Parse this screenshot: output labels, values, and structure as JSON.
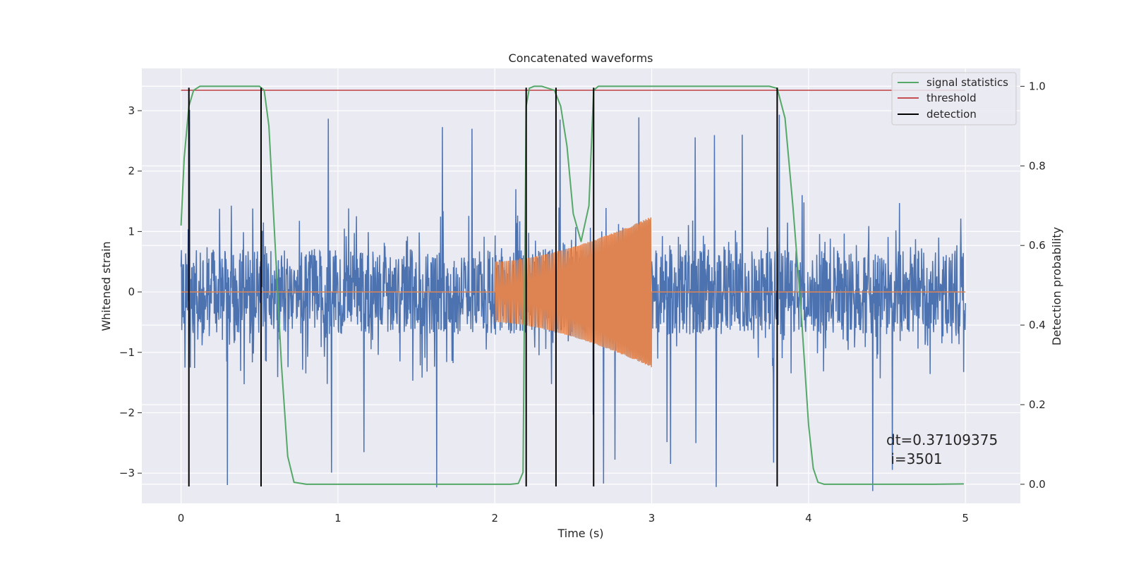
{
  "chart_data": {
    "type": "line",
    "title": "Concatenated waveforms",
    "xlabel": "Time (s)",
    "ylabel": "Whitened strain",
    "y2label": "Detection probability",
    "xlim": [
      -0.25,
      5.35
    ],
    "ylim": [
      -3.5,
      3.7
    ],
    "y2lim": [
      -0.048,
      1.045
    ],
    "x_ticks": [
      0,
      1,
      2,
      3,
      4,
      5
    ],
    "x_tick_labels": [
      "0",
      "1",
      "2",
      "3",
      "4",
      "5"
    ],
    "y_ticks": [
      -3,
      -2,
      -1,
      0,
      1,
      2,
      3
    ],
    "y_tick_labels": [
      "−3",
      "−2",
      "−1",
      "0",
      "1",
      "2",
      "3"
    ],
    "y2_ticks": [
      0.0,
      0.2,
      0.4,
      0.6,
      0.8,
      1.0
    ],
    "y2_tick_labels": [
      "0.0",
      "0.2",
      "0.4",
      "0.6",
      "0.8",
      "1.0"
    ],
    "grid": true,
    "legend_position": "top-right",
    "legend": [
      "signal statistics",
      "threshold",
      "detection"
    ],
    "series": [
      {
        "name": "",
        "axis": "left",
        "color": "#4c72b0",
        "kind": "noise",
        "x_range": [
          0,
          5
        ],
        "core_amplitude": 0.7,
        "peak_amplitude_typical": 2.0,
        "peak_amplitude_max": 3.3
      },
      {
        "name": "",
        "axis": "left",
        "color": "#dd8452",
        "kind": "chirp",
        "x_range": [
          0,
          5
        ],
        "active_range": [
          2.0,
          3.0
        ],
        "amplitude_start": 0.5,
        "amplitude_end": 1.25
      },
      {
        "name": "signal statistics",
        "axis": "right",
        "color": "#55a868",
        "x": [
          0.0,
          0.02,
          0.05,
          0.08,
          0.12,
          0.2,
          0.3,
          0.45,
          0.5,
          0.53,
          0.56,
          0.6,
          0.64,
          0.68,
          0.72,
          0.8,
          1.0,
          1.5,
          2.0,
          2.1,
          2.15,
          2.18,
          2.2,
          2.22,
          2.25,
          2.3,
          2.38,
          2.42,
          2.46,
          2.5,
          2.55,
          2.6,
          2.63,
          2.66,
          2.7,
          2.8,
          3.0,
          3.5,
          3.75,
          3.8,
          3.85,
          3.9,
          3.95,
          4.0,
          4.03,
          4.06,
          4.1,
          4.2,
          4.5,
          4.8,
          4.99
        ],
        "y": [
          0.65,
          0.82,
          0.95,
          0.99,
          1.0,
          1.0,
          1.0,
          1.0,
          1.0,
          0.99,
          0.9,
          0.6,
          0.3,
          0.07,
          0.005,
          0.0,
          0.0,
          0.0,
          0.0,
          0.0,
          0.002,
          0.03,
          0.95,
          0.995,
          1.0,
          1.0,
          0.99,
          0.95,
          0.85,
          0.68,
          0.61,
          0.7,
          0.99,
          1.0,
          1.0,
          1.0,
          1.0,
          1.0,
          1.0,
          0.995,
          0.92,
          0.7,
          0.45,
          0.15,
          0.04,
          0.005,
          0.0,
          0.0,
          0.0,
          0.0,
          0.001
        ]
      },
      {
        "name": "threshold",
        "axis": "right",
        "color": "#c44e52",
        "x": [
          0,
          5
        ],
        "y": [
          0.99,
          0.99
        ]
      }
    ],
    "detections": {
      "name": "detection",
      "color": "#000000",
      "x": [
        0.05,
        0.51,
        2.2,
        2.39,
        2.63,
        3.8
      ],
      "ylim": [
        -3.22,
        3.38
      ]
    },
    "annotation": {
      "line1": "dt=0.37109375",
      "line2": " i=3501"
    }
  }
}
